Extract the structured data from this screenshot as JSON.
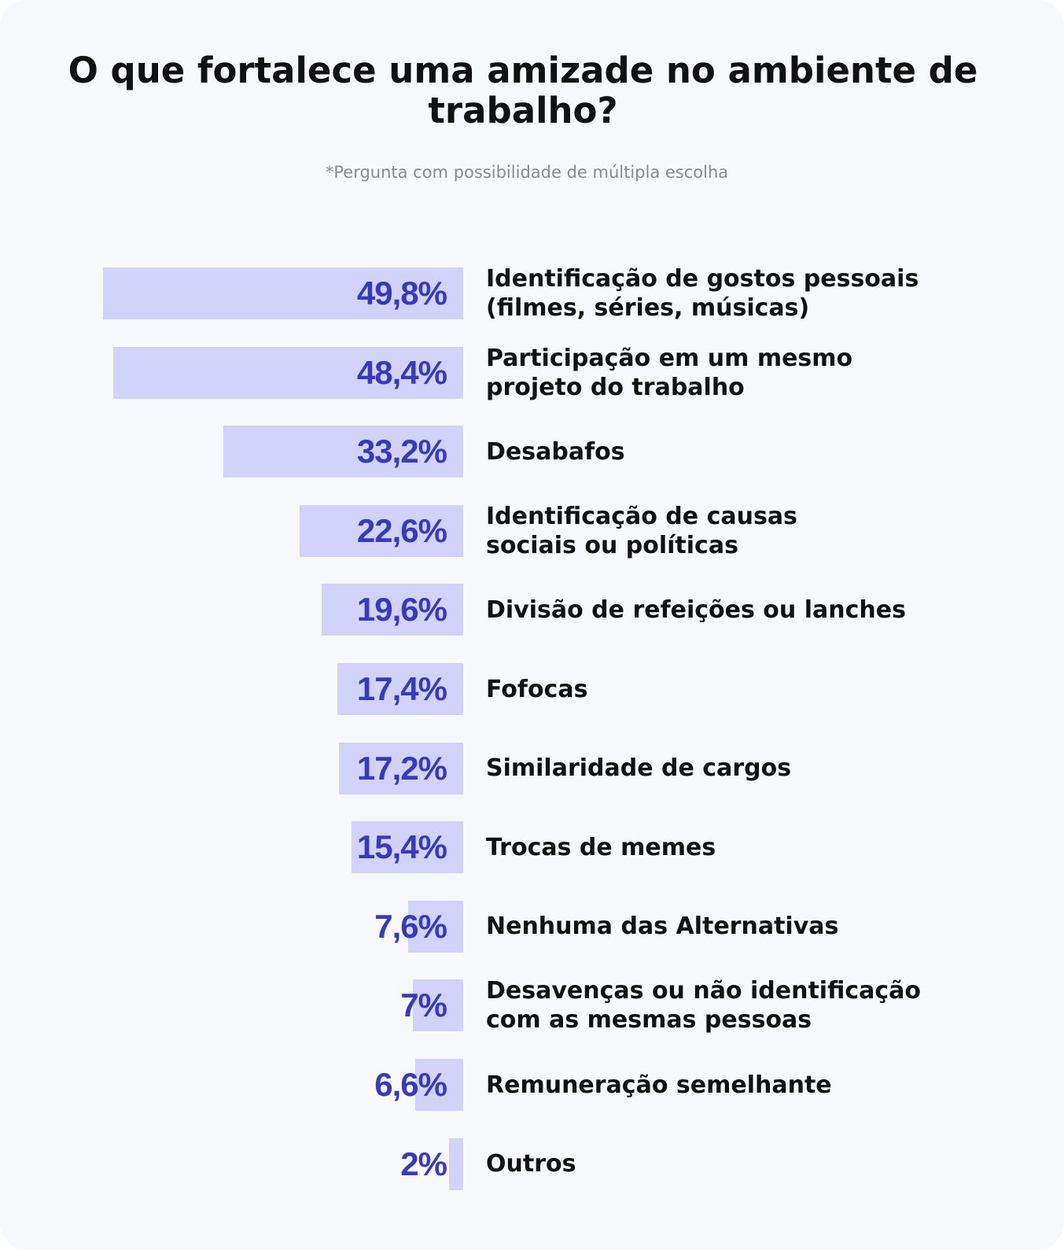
{
  "title": "O que fortalece uma amizade no ambiente de trabalho?",
  "subtitle": "*Pergunta com possibilidade de múltipla escolha",
  "colors": {
    "bar": "#d1d3fa",
    "value_text": "#3739c2",
    "label_text": "#111111",
    "background": "#f7f8fb"
  },
  "chart_data": {
    "type": "bar",
    "orientation": "horizontal",
    "categories": [
      [
        "Identificação de gostos pessoais",
        "(filmes, séries, músicas)"
      ],
      [
        "Participação em um mesmo",
        "projeto do trabalho"
      ],
      [
        "Desabafos"
      ],
      [
        "Identificação de causas",
        "sociais ou políticas"
      ],
      [
        "Divisão de refeições ou lanches"
      ],
      [
        "Fofocas"
      ],
      [
        "Similaridade de cargos"
      ],
      [
        "Trocas de memes"
      ],
      [
        "Nenhuma das Alternativas"
      ],
      [
        "Desavenças ou não identificação",
        "com as mesmas pessoas"
      ],
      [
        "Remuneração semelhante"
      ],
      [
        "Outros"
      ]
    ],
    "values": [
      49.8,
      48.4,
      33.2,
      22.6,
      19.6,
      17.4,
      17.2,
      15.4,
      7.6,
      7,
      6.6,
      2
    ],
    "value_labels": [
      "49,8%",
      "48,4%",
      "33,2%",
      "22,6%",
      "19,6%",
      "17,4%",
      "17,2%",
      "15,4%",
      "7,6%",
      "7%",
      "6,6%",
      "2%"
    ],
    "unit": "%"
  }
}
